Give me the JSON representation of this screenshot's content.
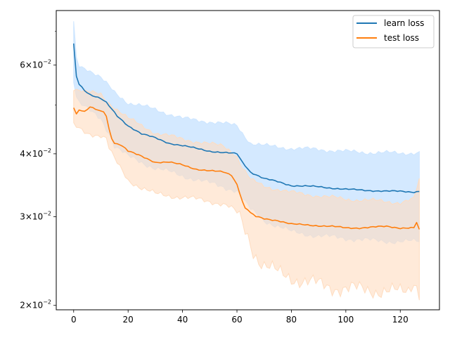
{
  "chart_data": {
    "type": "line",
    "title": "",
    "xlabel": "",
    "ylabel": "",
    "yscale": "log",
    "xlim": [
      -6.4,
      134.4
    ],
    "ylim": [
      0.0196,
      0.077
    ],
    "grid": false,
    "legend_position": "top-right",
    "x_ticks": [
      0,
      20,
      40,
      60,
      80,
      100,
      120
    ],
    "x_tick_labels": [
      "0",
      "20",
      "40",
      "60",
      "80",
      "100",
      "120"
    ],
    "y_major_ticks": [
      0.02,
      0.03,
      0.04,
      0.06
    ],
    "y_tick_labels": [
      {
        "base": "2",
        "exp": "−2"
      },
      {
        "base": "3",
        "exp": "−2"
      },
      {
        "base": "4",
        "exp": "−2"
      },
      {
        "base": "6",
        "exp": "−2"
      }
    ],
    "y_minor_ticks": [
      0.05,
      0.07
    ],
    "series": [
      {
        "name": "learn loss",
        "color": "#1f77b4",
        "band_color": "#cde5ff",
        "keypoints": {
          "x": [
            0,
            1,
            2,
            4,
            6,
            8,
            10,
            12,
            14,
            16,
            18,
            20,
            25,
            30,
            35,
            40,
            45,
            50,
            55,
            60,
            62,
            65,
            70,
            75,
            80,
            85,
            90,
            95,
            100,
            105,
            110,
            115,
            120,
            125,
            127
          ],
          "y": [
            0.066,
            0.057,
            0.055,
            0.0535,
            0.0525,
            0.052,
            0.0515,
            0.0505,
            0.049,
            0.0475,
            0.0465,
            0.0455,
            0.0438,
            0.043,
            0.042,
            0.0415,
            0.041,
            0.0405,
            0.0402,
            0.04,
            0.0385,
            0.0368,
            0.0357,
            0.0352,
            0.0346,
            0.0345,
            0.0344,
            0.0342,
            0.034,
            0.0339,
            0.0338,
            0.0337,
            0.0337,
            0.0336,
            0.0337
          ]
        },
        "upper_keypoints": {
          "x": [
            0,
            1,
            2,
            5,
            10,
            15,
            20,
            30,
            40,
            50,
            60,
            62,
            65,
            70,
            80,
            90,
            100,
            110,
            120,
            127
          ],
          "y": [
            0.073,
            0.062,
            0.06,
            0.059,
            0.0565,
            0.053,
            0.0505,
            0.049,
            0.047,
            0.0463,
            0.0455,
            0.044,
            0.042,
            0.0415,
            0.041,
            0.0408,
            0.0404,
            0.0402,
            0.0401,
            0.0402
          ]
        },
        "lower_keypoints": {
          "x": [
            0,
            1,
            2,
            5,
            10,
            13,
            15,
            20,
            30,
            40,
            50,
            60,
            63,
            65,
            70,
            80,
            90,
            100,
            110,
            120,
            127
          ],
          "y": [
            0.056,
            0.052,
            0.0505,
            0.049,
            0.047,
            0.044,
            0.0415,
            0.0395,
            0.0375,
            0.0362,
            0.035,
            0.0338,
            0.032,
            0.031,
            0.0295,
            0.028,
            0.0275,
            0.0272,
            0.0269,
            0.0268,
            0.0268
          ]
        }
      },
      {
        "name": "test loss",
        "color": "#ff7f0e",
        "band_color": "#ffdcbf",
        "keypoints": {
          "x": [
            0,
            1,
            2,
            4,
            6,
            8,
            10,
            11,
            12,
            13,
            14,
            15,
            17,
            19,
            20,
            25,
            30,
            35,
            40,
            45,
            50,
            55,
            58,
            60,
            61,
            62,
            63,
            64,
            65,
            67,
            70,
            75,
            80,
            85,
            90,
            95,
            100,
            105,
            110,
            115,
            120,
            125,
            126,
            127
          ],
          "y": [
            0.0495,
            0.048,
            0.049,
            0.0485,
            0.0495,
            0.049,
            0.0485,
            0.0485,
            0.0475,
            0.0448,
            0.043,
            0.042,
            0.0418,
            0.041,
            0.0405,
            0.0395,
            0.0385,
            0.0385,
            0.038,
            0.0373,
            0.037,
            0.0368,
            0.0363,
            0.0348,
            0.0335,
            0.0322,
            0.0312,
            0.031,
            0.0305,
            0.03,
            0.0297,
            0.0295,
            0.029,
            0.0289,
            0.0288,
            0.0287,
            0.0285,
            0.0285,
            0.0286,
            0.0287,
            0.0285,
            0.0285,
            0.0292,
            0.0282
          ]
        },
        "upper_keypoints": {
          "x": [
            0,
            2,
            5,
            10,
            12,
            15,
            20,
            25,
            30,
            40,
            50,
            55,
            58,
            60,
            62,
            65,
            70,
            80,
            90,
            100,
            110,
            120,
            125,
            127
          ],
          "y": [
            0.054,
            0.0535,
            0.053,
            0.0525,
            0.051,
            0.0495,
            0.047,
            0.0455,
            0.044,
            0.0428,
            0.0418,
            0.0415,
            0.0405,
            0.0395,
            0.0375,
            0.0355,
            0.0345,
            0.0335,
            0.033,
            0.0325,
            0.0323,
            0.032,
            0.0325,
            0.0355
          ]
        },
        "lower_keypoints": {
          "x": [
            0,
            2,
            5,
            10,
            12,
            13,
            15,
            20,
            25,
            30,
            40,
            50,
            55,
            58,
            60,
            62,
            64,
            66,
            68,
            70,
            75,
            80,
            85,
            90,
            95,
            100,
            105,
            110,
            115,
            120,
            123,
            125,
            127
          ],
          "y": [
            0.0455,
            0.0448,
            0.044,
            0.0435,
            0.0428,
            0.041,
            0.039,
            0.0355,
            0.0342,
            0.0333,
            0.0328,
            0.0322,
            0.0318,
            0.0312,
            0.0305,
            0.029,
            0.0275,
            0.0258,
            0.0247,
            0.024,
            0.0232,
            0.0228,
            0.0223,
            0.022,
            0.0218,
            0.0216,
            0.0215,
            0.0215,
            0.0214,
            0.0212,
            0.0214,
            0.0225,
            0.0213
          ]
        }
      }
    ]
  }
}
